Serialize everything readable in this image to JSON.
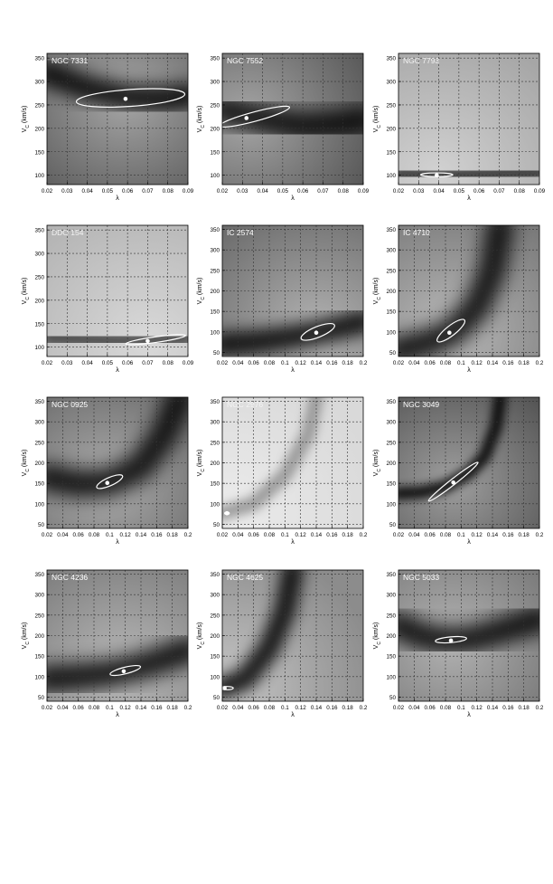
{
  "chart_data": [
    {
      "type": "heatmap",
      "label": "NGC 7331",
      "x_axis": "λ",
      "y_axis": "V_C (km/s)",
      "xlim": [
        0.02,
        0.09
      ],
      "xticks": [
        0.02,
        0.03,
        0.04,
        0.05,
        0.06,
        0.07,
        0.08,
        0.09
      ],
      "xtick_labels": [
        "0.02",
        "0.03",
        "0.04",
        "0.05",
        "0.06",
        "0.07",
        "0.08",
        "0.09"
      ],
      "ylim": [
        80,
        360
      ],
      "yticks": [
        100,
        150,
        200,
        250,
        300,
        350
      ],
      "best_fit": {
        "x": 0.059,
        "y": 263
      },
      "ellipse": {
        "cx": 0.0615,
        "cy": 265,
        "rx": 0.027,
        "ry": 18,
        "angle": -4
      },
      "min_path": [
        [
          0.02,
          318
        ],
        [
          0.04,
          285
        ],
        [
          0.06,
          266
        ],
        [
          0.08,
          263
        ],
        [
          0.09,
          270
        ]
      ],
      "path_color": "#000000",
      "pw": 28,
      "lab": "light",
      "g": 0.7
    },
    {
      "type": "heatmap",
      "label": "NGC 7552",
      "x_axis": "λ",
      "y_axis": "V_C (km/s)",
      "xlim": [
        0.02,
        0.09
      ],
      "xticks": [
        0.02,
        0.03,
        0.04,
        0.05,
        0.06,
        0.07,
        0.08,
        0.09
      ],
      "xtick_labels": [
        "0.02",
        "0.03",
        "0.04",
        "0.05",
        "0.06",
        "0.07",
        "0.08",
        "0.09"
      ],
      "ylim": [
        80,
        360
      ],
      "yticks": [
        100,
        150,
        200,
        250,
        300,
        350
      ],
      "best_fit": {
        "x": 0.032,
        "y": 222
      },
      "ellipse": {
        "cx": 0.036,
        "cy": 225,
        "rx": 0.018,
        "ry": 10,
        "angle": -15
      },
      "min_path": [
        [
          0.02,
          240
        ],
        [
          0.04,
          220
        ],
        [
          0.06,
          205
        ],
        [
          0.08,
          210
        ],
        [
          0.09,
          218
        ]
      ],
      "path_color": "#000000",
      "pw": 32,
      "lab": "light",
      "g": 0.7
    },
    {
      "type": "heatmap",
      "label": "NGC 7793",
      "x_axis": "λ",
      "y_axis": "V_C (km/s)",
      "xlim": [
        0.02,
        0.09
      ],
      "xticks": [
        0.02,
        0.03,
        0.04,
        0.05,
        0.06,
        0.07,
        0.08,
        0.09
      ],
      "xtick_labels": [
        "0.02",
        "0.03",
        "0.04",
        "0.05",
        "0.06",
        "0.07",
        "0.08",
        "0.09"
      ],
      "ylim": [
        80,
        360
      ],
      "yticks": [
        100,
        150,
        200,
        250,
        300,
        350
      ],
      "best_fit": {
        "x": 0.039,
        "y": 100
      },
      "ellipse": {
        "cx": 0.039,
        "cy": 101,
        "rx": 0.008,
        "ry": 4,
        "angle": 0
      },
      "min_path": [
        [
          0.02,
          103
        ],
        [
          0.04,
          100
        ],
        [
          0.06,
          102
        ],
        [
          0.09,
          106
        ]
      ],
      "path_color": "#202020",
      "pw": 16,
      "lab": "dark",
      "g": 0.35
    },
    {
      "type": "heatmap",
      "label": "DDO 154",
      "x_axis": "λ",
      "y_axis": "V_C (km/s)",
      "xlim": [
        0.02,
        0.09
      ],
      "xticks": [
        0.02,
        0.03,
        0.04,
        0.05,
        0.06,
        0.07,
        0.08,
        0.09
      ],
      "xtick_labels": [
        "0.02",
        "0.03",
        "0.04",
        "0.05",
        "0.06",
        "0.07",
        "0.08",
        "0.09"
      ],
      "ylim": [
        80,
        360
      ],
      "yticks": [
        100,
        150,
        200,
        250,
        300,
        350
      ],
      "best_fit": {
        "x": 0.07,
        "y": 113
      },
      "ellipse": {
        "cx": 0.074,
        "cy": 116,
        "rx": 0.015,
        "ry": 6,
        "angle": -8
      },
      "min_path": [
        [
          0.02,
          120
        ],
        [
          0.05,
          114
        ],
        [
          0.07,
          113
        ],
        [
          0.09,
          118
        ]
      ],
      "path_color": "#303030",
      "pw": 18,
      "lab": "dark",
      "g": 0.3
    },
    {
      "type": "heatmap",
      "label": "IC 2574",
      "x_axis": "λ",
      "y_axis": "V_C (km/s)",
      "xlim": [
        0.02,
        0.2
      ],
      "xticks": [
        0.02,
        0.04,
        0.06,
        0.08,
        0.1,
        0.12,
        0.14,
        0.16,
        0.18,
        0.2
      ],
      "xtick_labels": [
        "0.02",
        "0.04",
        "0.06",
        "0.08",
        "0.1",
        "0.12",
        "0.14",
        "0.16",
        "0.18",
        "0.2"
      ],
      "ylim": [
        40,
        360
      ],
      "yticks": [
        50,
        100,
        150,
        200,
        250,
        300,
        350
      ],
      "best_fit": {
        "x": 0.14,
        "y": 98
      },
      "ellipse": {
        "cx": 0.142,
        "cy": 100,
        "rx": 0.023,
        "ry": 13,
        "angle": -22
      },
      "min_path": [
        [
          0.02,
          70
        ],
        [
          0.06,
          75
        ],
        [
          0.1,
          85
        ],
        [
          0.14,
          98
        ],
        [
          0.18,
          115
        ],
        [
          0.2,
          125
        ]
      ],
      "path_color": "#000000",
      "pw": 26,
      "lab": "light",
      "g": 0.6
    },
    {
      "type": "heatmap",
      "label": "IC 4710",
      "x_axis": "λ",
      "y_axis": "V_C (km/s)",
      "xlim": [
        0.02,
        0.2
      ],
      "xticks": [
        0.02,
        0.04,
        0.06,
        0.08,
        0.1,
        0.12,
        0.14,
        0.16,
        0.18,
        0.2
      ],
      "xtick_labels": [
        "0.02",
        "0.04",
        "0.06",
        "0.08",
        "0.1",
        "0.12",
        "0.14",
        "0.16",
        "0.18",
        "0.2"
      ],
      "ylim": [
        40,
        360
      ],
      "yticks": [
        50,
        100,
        150,
        200,
        250,
        300,
        350
      ],
      "best_fit": {
        "x": 0.085,
        "y": 98
      },
      "ellipse": {
        "cx": 0.087,
        "cy": 103,
        "rx": 0.022,
        "ry": 12,
        "angle": -38
      },
      "min_path": [
        [
          0.02,
          55
        ],
        [
          0.06,
          75
        ],
        [
          0.09,
          100
        ],
        [
          0.12,
          160
        ],
        [
          0.14,
          250
        ],
        [
          0.15,
          360
        ]
      ],
      "path_color": "#000000",
      "pw": 30,
      "lab": "light",
      "g": 0.55
    },
    {
      "type": "heatmap",
      "label": "NGC 0925",
      "x_axis": "λ",
      "y_axis": "V_C (km/s)",
      "xlim": [
        0.02,
        0.2
      ],
      "xticks": [
        0.02,
        0.04,
        0.06,
        0.08,
        0.1,
        0.12,
        0.14,
        0.16,
        0.18,
        0.2
      ],
      "xtick_labels": [
        "0.02",
        "0.04",
        "0.06",
        "0.08",
        "0.1",
        "0.12",
        "0.14",
        "0.16",
        "0.18",
        "0.2"
      ],
      "ylim": [
        40,
        360
      ],
      "yticks": [
        50,
        100,
        150,
        200,
        250,
        300,
        350
      ],
      "best_fit": {
        "x": 0.097,
        "y": 151
      },
      "ellipse": {
        "cx": 0.1,
        "cy": 154,
        "rx": 0.018,
        "ry": 10,
        "angle": -24
      },
      "min_path": [
        [
          0.02,
          165
        ],
        [
          0.06,
          148
        ],
        [
          0.1,
          152
        ],
        [
          0.14,
          190
        ],
        [
          0.17,
          270
        ],
        [
          0.19,
          360
        ]
      ],
      "path_color": "#000000",
      "pw": 30,
      "lab": "light",
      "g": 0.65
    },
    {
      "type": "heatmap",
      "label": "NGC 2976",
      "x_axis": "λ",
      "y_axis": "V_C (km/s)",
      "xlim": [
        0.02,
        0.2
      ],
      "xticks": [
        0.02,
        0.04,
        0.06,
        0.08,
        0.1,
        0.12,
        0.14,
        0.16,
        0.18,
        0.2
      ],
      "xtick_labels": [
        "0.02",
        "0.04",
        "0.06",
        "0.08",
        "0.1",
        "0.12",
        "0.14",
        "0.16",
        "0.18",
        "0.2"
      ],
      "ylim": [
        40,
        360
      ],
      "yticks": [
        50,
        100,
        150,
        200,
        250,
        300,
        350
      ],
      "best_fit": {
        "x": 0.026,
        "y": 77
      },
      "ellipse": {
        "cx": 0.026,
        "cy": 77,
        "rx": 0.003,
        "ry": 3,
        "angle": 0
      },
      "min_path": [
        [
          0.02,
          77
        ],
        [
          0.06,
          100
        ],
        [
          0.1,
          170
        ],
        [
          0.13,
          270
        ],
        [
          0.14,
          360
        ]
      ],
      "path_color": "#909090",
      "pw": 16,
      "lab": "dark",
      "g": 0.15
    },
    {
      "type": "heatmap",
      "label": "NGC 3049",
      "x_axis": "λ",
      "y_axis": "V_C (km/s)",
      "xlim": [
        0.02,
        0.2
      ],
      "xticks": [
        0.02,
        0.04,
        0.06,
        0.08,
        0.1,
        0.12,
        0.14,
        0.16,
        0.18,
        0.2
      ],
      "xtick_labels": [
        "0.02",
        "0.04",
        "0.06",
        "0.08",
        "0.1",
        "0.12",
        "0.14",
        "0.16",
        "0.18",
        "0.2"
      ],
      "ylim": [
        40,
        360
      ],
      "yticks": [
        50,
        100,
        150,
        200,
        250,
        300,
        350
      ],
      "best_fit": {
        "x": 0.09,
        "y": 152
      },
      "ellipse": {
        "cx": 0.09,
        "cy": 154,
        "rx": 0.04,
        "ry": 7,
        "angle": -38
      },
      "min_path": [
        [
          0.02,
          125
        ],
        [
          0.05,
          128
        ],
        [
          0.08,
          142
        ],
        [
          0.11,
          175
        ],
        [
          0.13,
          215
        ],
        [
          0.145,
          290
        ],
        [
          0.15,
          360
        ]
      ],
      "path_color": "#000000",
      "pw": 14,
      "lab": "light",
      "g": 0.75
    },
    {
      "type": "heatmap",
      "label": "NGC 4236",
      "x_axis": "λ",
      "y_axis": "V_C (km/s)",
      "xlim": [
        0.02,
        0.2
      ],
      "xticks": [
        0.02,
        0.04,
        0.06,
        0.08,
        0.1,
        0.12,
        0.14,
        0.16,
        0.18,
        0.2
      ],
      "xtick_labels": [
        "0.02",
        "0.04",
        "0.06",
        "0.08",
        "0.1",
        "0.12",
        "0.14",
        "0.16",
        "0.18",
        "0.2"
      ],
      "ylim": [
        40,
        360
      ],
      "yticks": [
        50,
        100,
        150,
        200,
        250,
        300,
        350
      ],
      "best_fit": {
        "x": 0.118,
        "y": 113
      },
      "ellipse": {
        "cx": 0.12,
        "cy": 115,
        "rx": 0.02,
        "ry": 8,
        "angle": -14
      },
      "min_path": [
        [
          0.02,
          95
        ],
        [
          0.06,
          100
        ],
        [
          0.1,
          108
        ],
        [
          0.14,
          125
        ],
        [
          0.18,
          150
        ],
        [
          0.2,
          165
        ]
      ],
      "path_color": "#000000",
      "pw": 30,
      "lab": "light",
      "g": 0.55
    },
    {
      "type": "heatmap",
      "label": "NGC 4625",
      "x_axis": "λ",
      "y_axis": "V_C (km/s)",
      "xlim": [
        0.02,
        0.2
      ],
      "xticks": [
        0.02,
        0.04,
        0.06,
        0.08,
        0.1,
        0.12,
        0.14,
        0.16,
        0.18,
        0.2
      ],
      "xtick_labels": [
        "0.02",
        "0.04",
        "0.06",
        "0.08",
        "0.1",
        "0.12",
        "0.14",
        "0.16",
        "0.18",
        "0.2"
      ],
      "ylim": [
        40,
        360
      ],
      "yticks": [
        50,
        100,
        150,
        200,
        250,
        300,
        350
      ],
      "best_fit": {
        "x": 0.023,
        "y": 72
      },
      "ellipse": {
        "cx": 0.026,
        "cy": 72,
        "rx": 0.008,
        "ry": 4,
        "angle": 0
      },
      "min_path": [
        [
          0.02,
          72
        ],
        [
          0.05,
          95
        ],
        [
          0.08,
          170
        ],
        [
          0.1,
          260
        ],
        [
          0.11,
          360
        ]
      ],
      "path_color": "#000000",
      "pw": 24,
      "lab": "light",
      "g": 0.45
    },
    {
      "type": "heatmap",
      "label": "NGC 5033",
      "x_axis": "λ",
      "y_axis": "V_C (km/s)",
      "xlim": [
        0.02,
        0.2
      ],
      "xticks": [
        0.02,
        0.04,
        0.06,
        0.08,
        0.1,
        0.12,
        0.14,
        0.16,
        0.18,
        0.2
      ],
      "xtick_labels": [
        "0.02",
        "0.04",
        "0.06",
        "0.08",
        "0.1",
        "0.12",
        "0.14",
        "0.16",
        "0.18",
        "0.2"
      ],
      "ylim": [
        40,
        360
      ],
      "yticks": [
        50,
        100,
        150,
        200,
        250,
        300,
        350
      ],
      "best_fit": {
        "x": 0.087,
        "y": 188
      },
      "ellipse": {
        "cx": 0.087,
        "cy": 190,
        "rx": 0.02,
        "ry": 7,
        "angle": -5
      },
      "min_path": [
        [
          0.02,
          225
        ],
        [
          0.05,
          198
        ],
        [
          0.08,
          188
        ],
        [
          0.11,
          190
        ],
        [
          0.14,
          205
        ],
        [
          0.2,
          240
        ]
      ],
      "path_color": "#000000",
      "pw": 30,
      "lab": "light",
      "g": 0.6
    }
  ]
}
